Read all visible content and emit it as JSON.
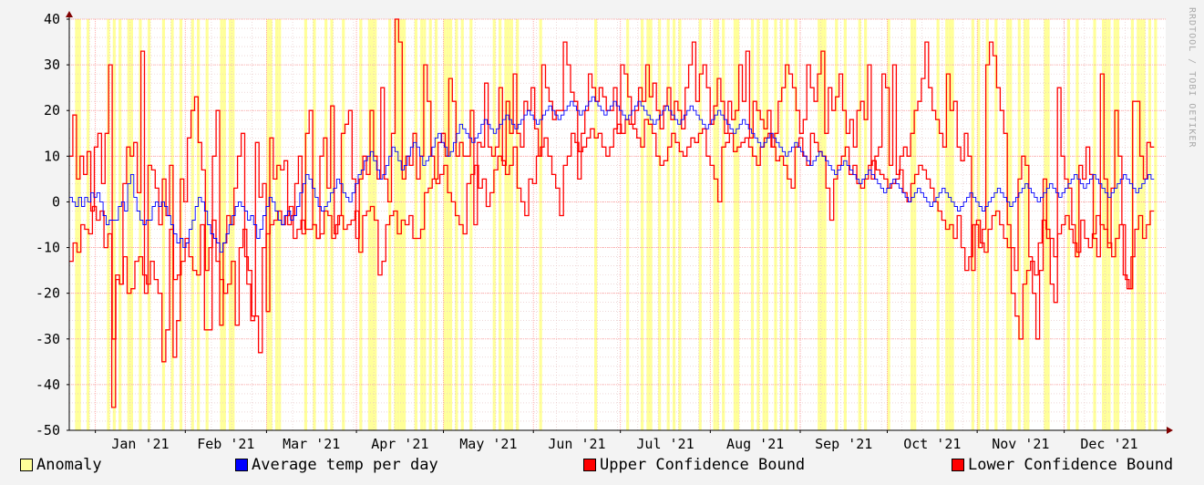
{
  "chart_data": {
    "type": "line",
    "title": "",
    "xlabel": "",
    "ylabel": "",
    "ylim": [
      -50,
      40
    ],
    "yticks": [
      40,
      30,
      20,
      10,
      0,
      -10,
      -20,
      -30,
      -40,
      -50
    ],
    "month_labels": [
      "Jan '21",
      "Feb '21",
      "Mar '21",
      "Apr '21",
      "May '21",
      "Jun '21",
      "Jul '21",
      "Aug '21",
      "Sep '21",
      "Oct '21",
      "Nov '21",
      "Dec '21"
    ],
    "grid": true,
    "legend_position": "bottom",
    "colors": {
      "anomaly": "#ffff99",
      "average": "#0000ff",
      "upper": "#ff0000",
      "lower": "#ff0000",
      "grid": "#ff9999",
      "axis": "#000000",
      "arrow": "#800000"
    },
    "series": [
      {
        "name": "Average temp per day",
        "values": [
          1,
          0,
          -1,
          1,
          -1,
          1,
          0,
          2,
          1,
          2,
          0,
          -3,
          -5,
          -4,
          -4,
          -4,
          -1,
          0,
          -2,
          4,
          6,
          1,
          -2,
          -4,
          -5,
          -4,
          -4,
          -1,
          0,
          -1,
          0,
          -1,
          -3,
          -5,
          -7,
          -9,
          -8,
          -10,
          -9,
          -6,
          -4,
          -1,
          1,
          0,
          -2,
          -5,
          -7,
          -8,
          -9,
          -11,
          -9,
          -7,
          -5,
          -3,
          -1,
          0,
          -1,
          -2,
          -4,
          -3,
          -5,
          -8,
          -6,
          -3,
          -1,
          1,
          0,
          -2,
          -4,
          -5,
          -3,
          -2,
          -4,
          -3,
          -1,
          2,
          4,
          6,
          5,
          3,
          1,
          -1,
          -2,
          -1,
          0,
          2,
          3,
          5,
          4,
          2,
          1,
          0,
          2,
          4,
          6,
          7,
          9,
          10,
          11,
          9,
          7,
          5,
          6,
          8,
          10,
          12,
          11,
          9,
          7,
          8,
          10,
          12,
          13,
          12,
          10,
          8,
          9,
          10,
          12,
          14,
          15,
          13,
          12,
          10,
          11,
          13,
          15,
          17,
          16,
          15,
          14,
          13,
          14,
          15,
          17,
          18,
          17,
          16,
          15,
          16,
          17,
          18,
          19,
          18,
          17,
          16,
          17,
          18,
          19,
          20,
          19,
          18,
          17,
          18,
          19,
          20,
          21,
          20,
          19,
          18,
          19,
          20,
          21,
          22,
          21,
          20,
          19,
          20,
          21,
          22,
          23,
          22,
          21,
          20,
          19,
          20,
          21,
          22,
          21,
          20,
          19,
          18,
          19,
          20,
          21,
          22,
          21,
          20,
          19,
          18,
          17,
          18,
          19,
          20,
          21,
          20,
          19,
          18,
          17,
          18,
          19,
          20,
          21,
          20,
          19,
          18,
          17,
          16,
          17,
          18,
          19,
          20,
          19,
          18,
          17,
          16,
          15,
          16,
          17,
          18,
          17,
          16,
          15,
          14,
          13,
          12,
          13,
          14,
          15,
          14,
          13,
          12,
          11,
          10,
          11,
          12,
          13,
          12,
          11,
          10,
          9,
          8,
          9,
          10,
          11,
          10,
          9,
          8,
          7,
          6,
          7,
          8,
          9,
          8,
          7,
          6,
          5,
          4,
          5,
          6,
          7,
          6,
          5,
          4,
          3,
          2,
          3,
          4,
          5,
          4,
          3,
          2,
          1,
          0,
          1,
          2,
          3,
          2,
          1,
          0,
          -1,
          0,
          1,
          2,
          3,
          2,
          1,
          0,
          -1,
          -2,
          -1,
          0,
          1,
          2,
          1,
          0,
          -1,
          -2,
          -1,
          0,
          1,
          2,
          3,
          2,
          1,
          0,
          -1,
          0,
          1,
          2,
          3,
          4,
          3,
          2,
          1,
          0,
          1,
          2,
          3,
          4,
          3,
          2,
          1,
          2,
          3,
          4,
          5,
          6,
          5,
          4,
          3,
          4,
          5,
          6,
          5,
          4,
          3,
          2,
          1,
          2,
          3,
          4,
          5,
          6,
          5,
          4,
          3,
          2,
          3,
          4,
          5,
          6,
          5
        ]
      },
      {
        "name": "Upper Confidence Bound",
        "values": [
          10,
          19,
          5,
          10,
          6,
          11,
          -2,
          12,
          15,
          4,
          15,
          30,
          -30,
          -17,
          -18,
          4,
          12,
          10,
          13,
          2,
          33,
          -20,
          8,
          7,
          3,
          -5,
          5,
          -3,
          8,
          -34,
          -26,
          5,
          0,
          14,
          20,
          23,
          13,
          7,
          -15,
          -10,
          10,
          20,
          -27,
          -9,
          -3,
          -5,
          3,
          10,
          15,
          -12,
          -15,
          -25,
          13,
          1,
          4,
          -24,
          14,
          5,
          8,
          7,
          9,
          -5,
          -3,
          4,
          10,
          -7,
          15,
          20,
          -5,
          -8,
          10,
          14,
          3,
          21,
          -7,
          -3,
          15,
          17,
          20,
          5,
          -8,
          5,
          10,
          6,
          20,
          10,
          5,
          25,
          5,
          0,
          15,
          40,
          35,
          5,
          10,
          8,
          15,
          5,
          10,
          30,
          22,
          10,
          5,
          13,
          15,
          10,
          27,
          22,
          10,
          13,
          10,
          10,
          20,
          -5,
          13,
          12,
          26,
          12,
          10,
          12,
          25,
          8,
          22,
          15,
          28,
          15,
          12,
          22,
          20,
          25,
          16,
          10,
          30,
          25,
          22,
          18,
          20,
          20,
          35,
          30,
          24,
          22,
          5,
          15,
          20,
          28,
          25,
          22,
          25,
          23,
          20,
          20,
          25,
          15,
          30,
          28,
          23,
          17,
          20,
          25,
          22,
          30,
          23,
          26,
          20,
          16,
          21,
          25,
          18,
          22,
          20,
          16,
          25,
          30,
          35,
          22,
          28,
          30,
          25,
          17,
          21,
          27,
          22,
          15,
          22,
          18,
          20,
          30,
          22,
          33,
          14,
          22,
          20,
          18,
          16,
          20,
          12,
          15,
          22,
          25,
          30,
          28,
          25,
          20,
          15,
          18,
          30,
          25,
          22,
          28,
          33,
          15,
          25,
          20,
          23,
          28,
          20,
          15,
          18,
          12,
          20,
          22,
          18,
          30,
          5,
          10,
          12,
          28,
          25,
          8,
          30,
          6,
          10,
          12,
          10,
          15,
          20,
          22,
          27,
          35,
          25,
          20,
          18,
          15,
          12,
          28,
          20,
          22,
          12,
          9,
          15,
          10,
          -15,
          -5,
          -10,
          -6,
          30,
          35,
          32,
          25,
          20,
          15,
          -5,
          -10,
          -15,
          5,
          10,
          8,
          -12,
          -20,
          -30,
          -15,
          5,
          -8,
          -18,
          -22,
          25,
          10,
          5,
          3,
          -5,
          -12,
          8,
          5,
          12,
          6,
          -8,
          -12,
          28,
          5,
          -10,
          3,
          20,
          10,
          -5,
          -17,
          -19,
          22,
          22,
          10,
          5,
          13,
          12
        ]
      },
      {
        "name": "Lower Confidence Bound",
        "values": [
          -13,
          -9,
          -11,
          -5,
          -6,
          -7,
          -1,
          -4,
          -2,
          -10,
          -7,
          -45,
          -16,
          -18,
          -12,
          -20,
          -19,
          -13,
          -12,
          -16,
          -18,
          -13,
          -17,
          -20,
          -35,
          -28,
          -6,
          -17,
          -16,
          -13,
          -8,
          -12,
          -15,
          -16,
          -5,
          -28,
          -28,
          -4,
          -13,
          -17,
          -20,
          -18,
          -13,
          -27,
          -10,
          -6,
          -18,
          -26,
          -25,
          -33,
          -10,
          -7,
          -5,
          -4,
          -2,
          -5,
          -3,
          -1,
          -8,
          -6,
          -4,
          -6,
          -6,
          -5,
          -8,
          -7,
          -2,
          -3,
          -8,
          -5,
          -3,
          -6,
          -5,
          -4,
          -2,
          -11,
          -3,
          -2,
          -1,
          -4,
          -16,
          -13,
          -5,
          -3,
          -2,
          -7,
          -4,
          -5,
          -3,
          -8,
          -8,
          -6,
          2,
          3,
          5,
          4,
          6,
          8,
          2,
          0,
          -3,
          -5,
          -7,
          4,
          6,
          8,
          3,
          5,
          -1,
          2,
          7,
          10,
          9,
          6,
          8,
          12,
          3,
          0,
          -3,
          5,
          4,
          10,
          12,
          14,
          10,
          6,
          3,
          -3,
          8,
          10,
          15,
          13,
          11,
          12,
          14,
          16,
          14,
          15,
          12,
          10,
          12,
          16,
          17,
          15,
          18,
          17,
          16,
          14,
          12,
          18,
          17,
          15,
          10,
          8,
          9,
          12,
          15,
          13,
          11,
          10,
          12,
          14,
          13,
          15,
          16,
          10,
          8,
          5,
          0,
          12,
          13,
          15,
          11,
          12,
          13,
          14,
          12,
          10,
          8,
          12,
          14,
          15,
          12,
          9,
          10,
          8,
          5,
          3,
          12,
          14,
          10,
          8,
          15,
          13,
          11,
          10,
          3,
          -4,
          5,
          8,
          10,
          12,
          6,
          8,
          4,
          3,
          5,
          8,
          9,
          7,
          6,
          5,
          3,
          4,
          5,
          7,
          2,
          0,
          4,
          6,
          8,
          7,
          5,
          3,
          0,
          -2,
          -4,
          -6,
          -5,
          -8,
          -3,
          -10,
          -15,
          -12,
          -5,
          -4,
          -9,
          -11,
          -6,
          -3,
          -2,
          -5,
          -8,
          -10,
          -20,
          -25,
          -30,
          -18,
          -15,
          -13,
          -16,
          -9,
          -4,
          -6,
          -8,
          -12,
          -7,
          -5,
          -3,
          -6,
          -9,
          -11,
          -4,
          -8,
          -10,
          -7,
          -3,
          -5,
          -6,
          -9,
          -12,
          -8,
          -5,
          -16,
          -19,
          -12,
          -6,
          -3,
          -8,
          -5,
          -2
        ]
      }
    ]
  },
  "legend": [
    {
      "label": "Anomaly",
      "color": "#ffff99"
    },
    {
      "label": "Average temp per day",
      "color": "#0000ff"
    },
    {
      "label": "Upper Confidence Bound",
      "color": "#ff0000"
    },
    {
      "label": "Lower Confidence Bound",
      "color": "#ff0000"
    }
  ],
  "watermark": "RRDTOOL / TOBI OETIKER"
}
